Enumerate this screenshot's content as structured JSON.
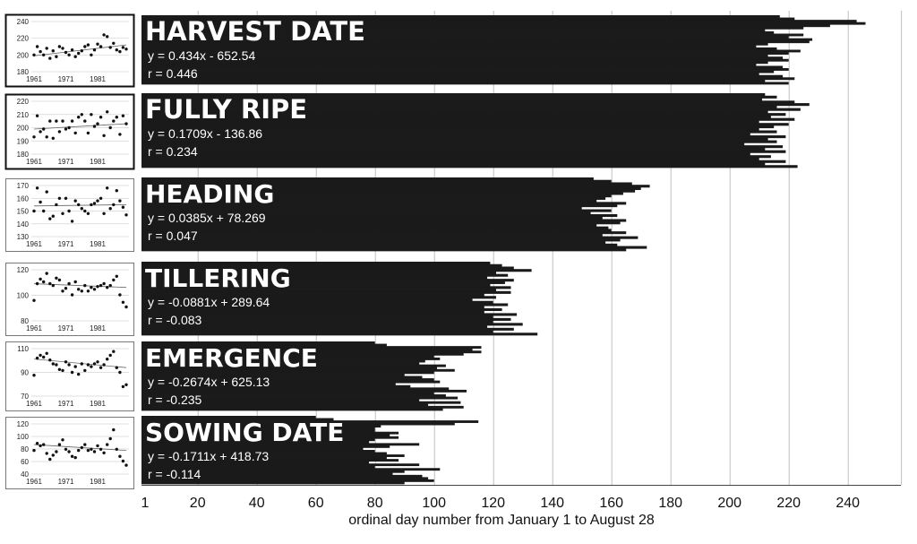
{
  "colors": {
    "bar": "#1a1a1a",
    "grid": "#bfbfbf",
    "text_on_dark": "#ffffff",
    "axis_text": "#111111"
  },
  "chart_data": {
    "type": "bar",
    "orientation": "horizontal",
    "xlabel": "ordinal day number from January 1 to August 28",
    "x_ticks": [
      "1",
      "20",
      "40",
      "60",
      "80",
      "100",
      "120",
      "140",
      "160",
      "180",
      "200",
      "220",
      "240"
    ],
    "xlim": [
      1,
      258
    ],
    "grid": true,
    "panels": [
      {
        "title": "HARVEST DATE",
        "equation": "y = 0.434x - 652.54",
        "r": "r = 0.446",
        "values": [
          217,
          222,
          243,
          246,
          234,
          225,
          212,
          215,
          225,
          220,
          228,
          227,
          213,
          209,
          216,
          224,
          220,
          213,
          218,
          220,
          213,
          209,
          218,
          220,
          215,
          210,
          218,
          222,
          212,
          220
        ],
        "mini": {
          "yticks": [
            "240",
            "220",
            "200",
            "180"
          ],
          "ylim": [
            180,
            240
          ],
          "xticks": [
            "1961",
            "1971",
            "1981"
          ],
          "points": [
            200,
            210,
            204,
            200,
            208,
            196,
            205,
            198,
            210,
            208,
            203,
            200,
            206,
            198,
            202,
            205,
            210,
            212,
            200,
            206,
            213,
            210,
            224,
            222,
            209,
            214,
            206,
            204,
            209,
            207
          ],
          "trend": [
            199,
            212
          ]
        }
      },
      {
        "title": "FULLY RIPE",
        "equation": "y =  0.1709x - 136.86",
        "r": "r = 0.234",
        "values": [
          212,
          216,
          211,
          222,
          227,
          216,
          224,
          213,
          219,
          214,
          222,
          210,
          220,
          215,
          210,
          216,
          207,
          219,
          213,
          216,
          205,
          218,
          212,
          219,
          207,
          214,
          210,
          219,
          212,
          223
        ],
        "mini": {
          "yticks": [
            "220",
            "210",
            "200",
            "190",
            "180"
          ],
          "ylim": [
            180,
            220
          ],
          "xticks": [
            "1961",
            "1971",
            "1981"
          ],
          "points": [
            193,
            209,
            197,
            199,
            193,
            205,
            192,
            205,
            197,
            205,
            199,
            200,
            205,
            196,
            208,
            210,
            205,
            196,
            210,
            201,
            203,
            208,
            194,
            212,
            200,
            205,
            208,
            195,
            209,
            203
          ],
          "trend": [
            199,
            203
          ]
        }
      },
      {
        "title": "HEADING",
        "equation": "y = 0.0385x + 78.269",
        "r": "r = 0.047",
        "values": [
          154,
          160,
          167,
          173,
          170,
          168,
          164,
          160,
          158,
          155,
          165,
          162,
          150,
          160,
          153,
          162,
          157,
          165,
          163,
          155,
          159,
          160,
          165,
          157,
          169,
          163,
          158,
          162,
          172,
          165
        ],
        "mini": {
          "yticks": [
            "170",
            "160",
            "150",
            "140",
            "130"
          ],
          "ylim": [
            130,
            170
          ],
          "xticks": [
            "1961",
            "1971",
            "1981"
          ],
          "points": [
            150,
            168,
            157,
            150,
            165,
            144,
            146,
            155,
            160,
            148,
            160,
            150,
            142,
            158,
            155,
            152,
            150,
            148,
            155,
            156,
            158,
            160,
            148,
            168,
            152,
            155,
            166,
            158,
            153,
            147
          ],
          "trend": [
            154,
            155
          ]
        }
      },
      {
        "title": "TILLERING",
        "equation": "y = -0.0881x + 289.64",
        "r": "r = -0.083",
        "values": [
          119,
          123,
          127,
          133,
          121,
          125,
          118,
          127,
          124,
          119,
          126,
          121,
          126,
          117,
          121,
          113,
          120,
          125,
          117,
          123,
          117,
          128,
          120,
          126,
          120,
          130,
          118,
          127,
          120,
          135
        ],
        "mini": {
          "yticks": [
            "120",
            "100",
            "80"
          ],
          "ylim": [
            80,
            135
          ],
          "xticks": [
            "1961",
            "1971",
            "1981"
          ],
          "points": [
            102,
            120,
            125,
            122,
            131,
            120,
            118,
            126,
            124,
            112,
            115,
            120,
            108,
            122,
            114,
            112,
            118,
            112,
            116,
            114,
            117,
            118,
            120,
            116,
            118,
            124,
            128,
            108,
            100,
            95
          ],
          "trend": [
            120,
            116
          ]
        }
      },
      {
        "title": "EMERGENCE",
        "equation": "y = -0.2674x + 625.13",
        "r": "r = -0.235",
        "values": [
          80,
          84,
          116,
          113,
          116,
          110,
          100,
          102,
          97,
          95,
          104,
          101,
          107,
          100,
          90,
          96,
          100,
          102,
          87,
          92,
          105,
          111,
          100,
          104,
          108,
          95,
          109,
          98,
          110,
          103
        ],
        "mini": {
          "yticks": [
            "110",
            "90",
            "70"
          ],
          "ylim": [
            65,
            115
          ],
          "xticks": [
            "1961",
            "1971",
            "1981"
          ],
          "points": [
            87,
            105,
            108,
            106,
            110,
            103,
            99,
            98,
            93,
            92,
            101,
            98,
            90,
            96,
            88,
            99,
            92,
            98,
            96,
            99,
            101,
            95,
            98,
            104,
            108,
            112,
            95,
            90,
            75,
            77
          ],
          "trend": [
            104,
            95
          ]
        }
      },
      {
        "title": "SOWING DATE",
        "equation": "y = -0.1711x + 418.73",
        "r": "r = -0.114",
        "values": [
          60,
          66,
          115,
          107,
          82,
          80,
          80,
          88,
          85,
          88,
          80,
          78,
          95,
          85,
          76,
          80,
          84,
          90,
          84,
          88,
          78,
          95,
          80,
          102,
          90,
          86,
          96,
          98,
          100,
          90
        ],
        "mini": {
          "yticks": [
            "120",
            "100",
            "80",
            "60",
            "40"
          ],
          "ylim": [
            40,
            125
          ],
          "xticks": [
            "1961",
            "1971",
            "1981"
          ],
          "points": [
            80,
            92,
            88,
            90,
            75,
            65,
            72,
            78,
            90,
            98,
            82,
            78,
            70,
            68,
            80,
            85,
            90,
            80,
            82,
            78,
            88,
            82,
            76,
            90,
            100,
            115,
            82,
            70,
            62,
            55
          ],
          "trend": [
            90,
            80
          ]
        }
      }
    ]
  }
}
